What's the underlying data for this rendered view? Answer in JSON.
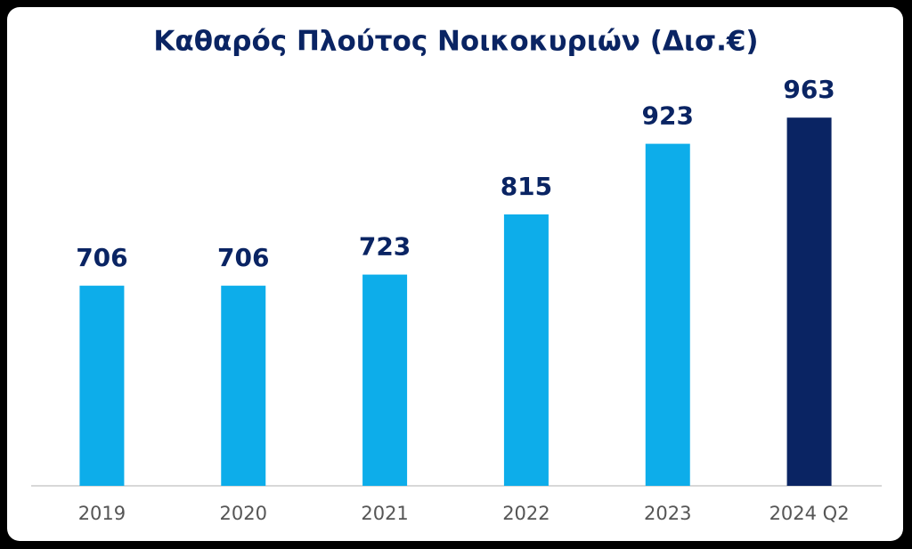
{
  "chart_data": {
    "type": "bar",
    "title": "Καθαρός Πλούτος Νοικοκυριών (Δισ.€)",
    "categories": [
      "2019",
      "2020",
      "2021",
      "2022",
      "2023",
      "2024 Q2"
    ],
    "values": [
      706,
      706,
      723,
      815,
      923,
      963
    ],
    "colors": [
      "#0dadea",
      "#0dadea",
      "#0dadea",
      "#0dadea",
      "#0dadea",
      "#0a2463"
    ],
    "ylim": [
      400,
      1000
    ]
  }
}
